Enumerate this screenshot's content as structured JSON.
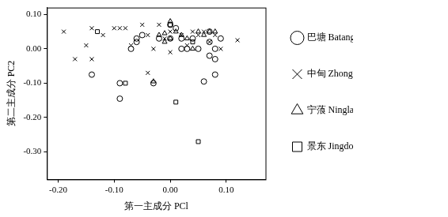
{
  "chart_data": {
    "type": "scatter",
    "x_label": "第一主成分 PCl",
    "y_label": "第二主成分 PC2",
    "xlim": [
      -0.22,
      0.17
    ],
    "ylim": [
      -0.38,
      0.12
    ],
    "xticks": [
      {
        "value": -0.2,
        "label": "-0.20"
      },
      {
        "value": -0.1,
        "label": "-0.10"
      },
      {
        "value": 0,
        "label": "0.00"
      },
      {
        "value": 0.1,
        "label": "0.10"
      }
    ],
    "yticks": [
      {
        "value": -0.3,
        "label": "-0.30"
      },
      {
        "value": -0.2,
        "label": "-0.20"
      },
      {
        "value": -0.1,
        "label": "-0.10"
      },
      {
        "value": 0,
        "label": "0.00"
      },
      {
        "value": 0.1,
        "label": "0.10"
      }
    ],
    "grid": false,
    "legend": "right",
    "series": [
      {
        "name": "巴塘 Batang",
        "color": "#000000",
        "marker": "circle",
        "x": [
          -0.14,
          -0.09,
          -0.09,
          -0.06,
          -0.06,
          -0.07,
          -0.03,
          -0.02,
          0.0,
          0.0,
          0.02,
          0.02,
          0.03,
          0.04,
          0.05,
          0.06,
          0.07,
          0.07,
          0.08,
          0.08,
          0.08,
          0.09,
          0.07,
          -0.05,
          0.01
        ],
        "y": [
          -0.075,
          -0.1,
          -0.145,
          0.03,
          0.02,
          0.0,
          -0.1,
          0.03,
          0.07,
          0.03,
          0.03,
          0.0,
          0.0,
          0.03,
          0.0,
          -0.095,
          0.02,
          -0.02,
          0.0,
          -0.03,
          -0.075,
          0.03,
          0.05,
          0.04,
          0.06
        ]
      },
      {
        "name": "中甸 Zhongdian",
        "color": "#000000",
        "marker": "cross",
        "x": [
          -0.19,
          -0.17,
          -0.15,
          -0.14,
          -0.14,
          -0.12,
          -0.1,
          -0.09,
          -0.08,
          -0.07,
          -0.05,
          -0.04,
          -0.04,
          -0.02,
          -0.01,
          0.0,
          0.02,
          0.03,
          0.04,
          0.05,
          0.06,
          0.07,
          0.08,
          0.09,
          0.12,
          -0.03,
          0.0
        ],
        "y": [
          0.05,
          -0.03,
          0.01,
          0.06,
          -0.03,
          0.04,
          0.06,
          0.06,
          0.06,
          0.01,
          0.07,
          0.04,
          -0.07,
          0.07,
          0.03,
          0.05,
          0.04,
          0.01,
          0.05,
          0.04,
          0.05,
          0.02,
          0.04,
          0.0,
          0.025,
          0.0,
          -0.01
        ]
      },
      {
        "name": "宁蒗 Ninglang",
        "color": "#000000",
        "marker": "triangle",
        "x": [
          -0.02,
          -0.01,
          0.0,
          0.01,
          0.02,
          0.05,
          0.06,
          0.07,
          0.08,
          0.03,
          0.0,
          -0.03,
          0.04,
          -0.01
        ],
        "y": [
          0.04,
          0.045,
          0.08,
          0.05,
          0.04,
          0.05,
          0.04,
          0.05,
          0.05,
          0.03,
          0.03,
          -0.095,
          0.0,
          0.02
        ]
      },
      {
        "name": "景东 Jingdong",
        "color": "#000000",
        "marker": "square",
        "x": [
          -0.13,
          -0.08,
          0.01,
          0.05,
          0.0,
          0.04
        ],
        "y": [
          0.05,
          -0.1,
          -0.155,
          -0.27,
          0.07,
          0.02
        ]
      }
    ]
  }
}
